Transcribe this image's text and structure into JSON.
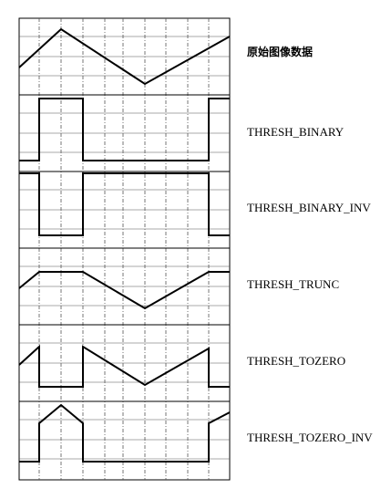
{
  "panels": [
    {
      "label": "原始图像数据",
      "kind": "original"
    },
    {
      "label": "THRESH_BINARY",
      "kind": "binary"
    },
    {
      "label": "THRESH_BINARY_INV",
      "kind": "binary_inv"
    },
    {
      "label": "THRESH_TRUNC",
      "kind": "trunc"
    },
    {
      "label": "THRESH_TOZERO",
      "kind": "tozero"
    },
    {
      "label": "THRESH_TOZERO_INV",
      "kind": "tozero_inv"
    }
  ],
  "colors": {
    "signal": "#000000",
    "grid": "#555555",
    "frame": "#000000"
  }
}
